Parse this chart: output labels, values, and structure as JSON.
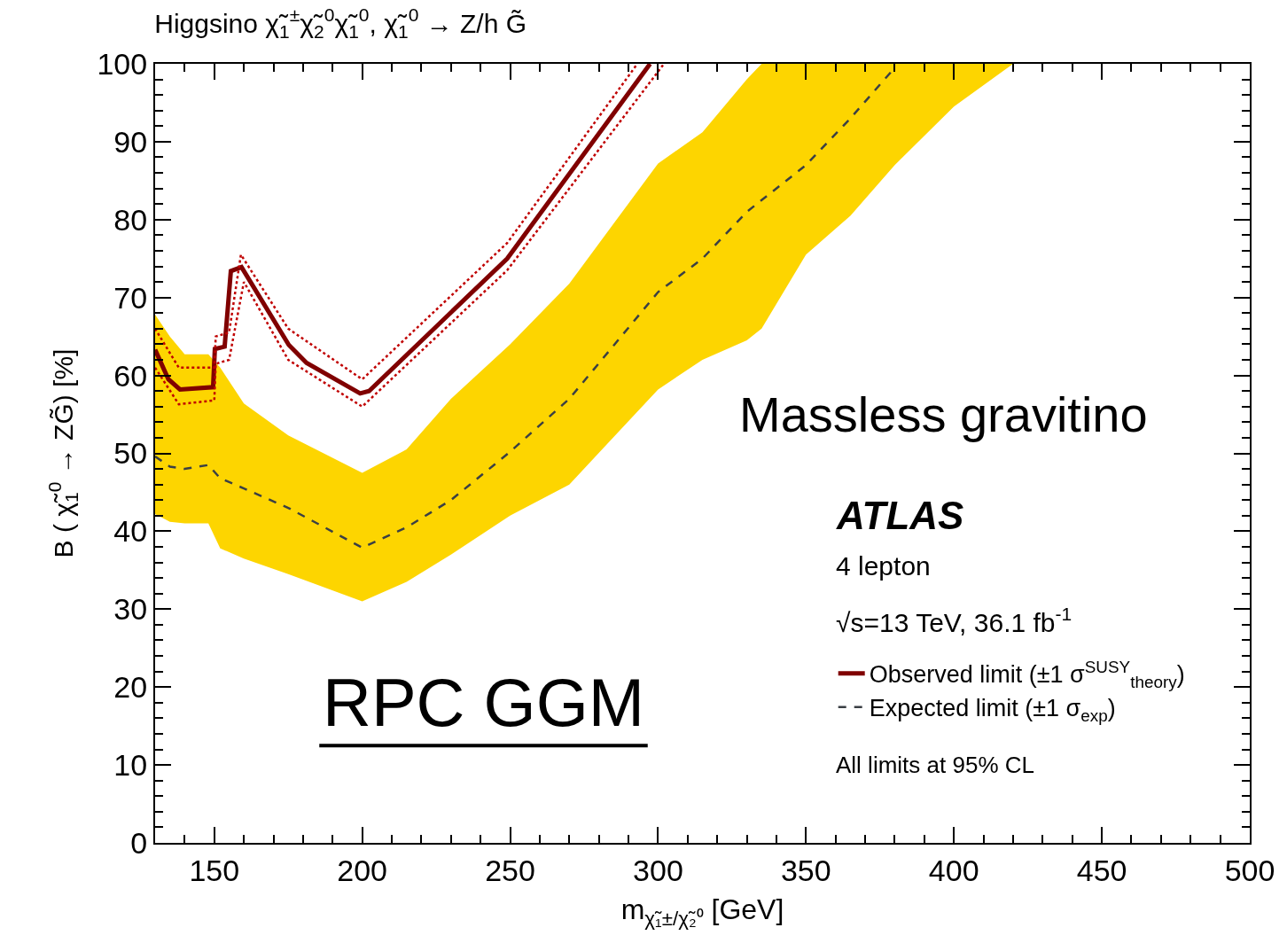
{
  "chart_data": {
    "type": "line",
    "title": "Higgsino χ̃$_{1}$$^{±}$χ̃$_{2}$$^{0}$χ̃$_{1}$$^{0}$, χ̃$_{1}$$^{0}$ → Z/h G̃",
    "xlabel": "m$_{χ̃₁±/χ̃₂⁰}$ [GeV]",
    "ylabel": "B ( χ̃$_{1}$$^{0}$ → ZG̃) [%]",
    "xlim": [
      130,
      500
    ],
    "ylim": [
      0,
      100
    ],
    "xticks": [
      150,
      200,
      250,
      300,
      350,
      400,
      450,
      500
    ],
    "yticks": [
      0,
      10,
      20,
      30,
      40,
      50,
      60,
      70,
      80,
      90,
      100
    ],
    "legend": "bottom right",
    "annotations": [
      "Massless gravitino",
      "ATLAS",
      "4 lepton",
      "√s=13 TeV, 36.1 fb$^{-1}$",
      "All limits at 95% CL",
      "RPC GGM"
    ],
    "series": [
      {
        "name": "Expected limit (±1 σ$_{exp}$)",
        "color": "#3a3f44",
        "line_style": "dashed",
        "x": [
          130,
          135,
          140,
          148,
          152,
          160,
          175,
          200,
          215,
          230,
          250,
          270,
          300,
          315,
          330,
          335,
          350,
          365,
          380,
          400,
          420
        ],
        "values": [
          49.6,
          48.3,
          48.0,
          48.5,
          46.8,
          45.5,
          43,
          37.9,
          40.5,
          44,
          50.2,
          57,
          70.7,
          75,
          81,
          82.5,
          87,
          93,
          99.5,
          null,
          null
        ],
        "lower": [
          42.2,
          41.2,
          41,
          41,
          37.8,
          36.5,
          34.5,
          31,
          33.5,
          37,
          42,
          46,
          58.2,
          62,
          64.5,
          66,
          75.5,
          80.5,
          87,
          94.5,
          100
        ],
        "upper": [
          67.8,
          65,
          62.7,
          62.7,
          61,
          56.4,
          52.3,
          47.5,
          50.5,
          57,
          64,
          71.8,
          87.2,
          91.2,
          98,
          100,
          100,
          100,
          100,
          100,
          100
        ]
      },
      {
        "name": "Observed limit (±1 σ$^{SUSY}$$_{theory}$)",
        "color": "#800000",
        "line_style": "solid",
        "x": [
          130,
          134.5,
          138.4,
          149.6,
          150.2,
          153.5,
          155.6,
          159.2,
          175.2,
          181.2,
          199.3,
          202.3,
          249,
          297.3
        ],
        "values": [
          63.3,
          59.5,
          58.2,
          58.5,
          63.4,
          63.7,
          73.4,
          73.9,
          63.9,
          61.6,
          57.7,
          58,
          75,
          100
        ]
      },
      {
        "color": "#c00000",
        "line_style": "dotted",
        "x": [
          130,
          138,
          150,
          150.5,
          155,
          159,
          175,
          200,
          249,
          293
        ],
        "values": [
          66,
          61,
          61,
          65,
          65.5,
          75.5,
          66,
          59.5,
          77,
          100
        ]
      },
      {
        "color": "#c00000",
        "line_style": "dotted",
        "x": [
          130,
          138,
          150,
          150.5,
          155,
          160,
          175,
          200,
          249,
          302
        ],
        "values": [
          61,
          56.3,
          56.8,
          61.5,
          62,
          72,
          62,
          56,
          73.5,
          100
        ]
      }
    ]
  }
}
